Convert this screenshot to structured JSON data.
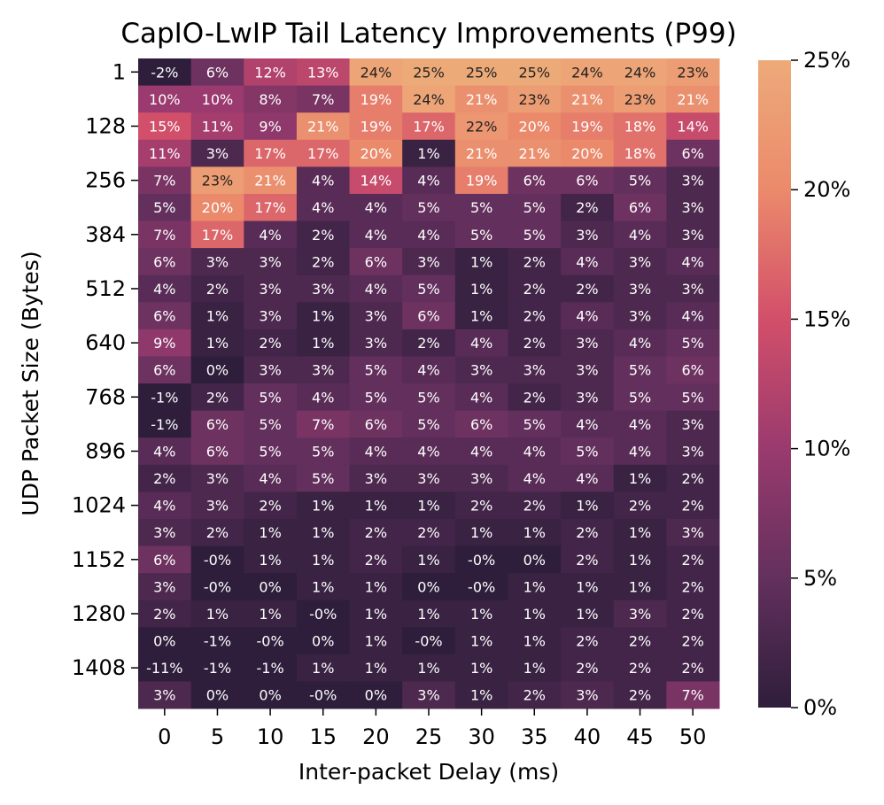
{
  "chart_data": {
    "type": "heatmap",
    "title": "CapIO-LwIP Tail Latency Improvements (P99)",
    "xlabel": "Inter-packet Delay (ms)",
    "ylabel": "UDP Packet Size (Bytes)",
    "x": [
      "0",
      "5",
      "10",
      "15",
      "20",
      "25",
      "30",
      "35",
      "40",
      "45",
      "50"
    ],
    "y_tick_labels": [
      "1",
      "128",
      "256",
      "384",
      "512",
      "640",
      "768",
      "896",
      "1024",
      "1152",
      "1280",
      "1408"
    ],
    "values": [
      [
        -2,
        6,
        12,
        13,
        24,
        25,
        25,
        25,
        24,
        24,
        23
      ],
      [
        10,
        10,
        8,
        7,
        19,
        24,
        21,
        23,
        21,
        23,
        21
      ],
      [
        15,
        11,
        9,
        21,
        19,
        17,
        22,
        20,
        19,
        18,
        14
      ],
      [
        11,
        3,
        17,
        17,
        20,
        1,
        21,
        21,
        20,
        18,
        6
      ],
      [
        7,
        23,
        21,
        4,
        14,
        4,
        19,
        6,
        6,
        5,
        3
      ],
      [
        5,
        20,
        17,
        4,
        4,
        5,
        5,
        5,
        2,
        6,
        3
      ],
      [
        7,
        17,
        4,
        2,
        4,
        4,
        5,
        5,
        3,
        4,
        3
      ],
      [
        6,
        3,
        3,
        2,
        6,
        3,
        1,
        2,
        4,
        3,
        4
      ],
      [
        4,
        2,
        3,
        3,
        4,
        5,
        1,
        2,
        2,
        3,
        3
      ],
      [
        6,
        1,
        3,
        1,
        3,
        6,
        1,
        2,
        4,
        3,
        4
      ],
      [
        9,
        1,
        2,
        1,
        3,
        2,
        4,
        2,
        3,
        4,
        5
      ],
      [
        6,
        0,
        3,
        3,
        5,
        4,
        3,
        3,
        3,
        5,
        6
      ],
      [
        -1,
        2,
        5,
        4,
        5,
        5,
        4,
        2,
        3,
        5,
        5
      ],
      [
        -1,
        6,
        5,
        7,
        6,
        5,
        6,
        5,
        4,
        4,
        3
      ],
      [
        4,
        6,
        5,
        5,
        4,
        4,
        4,
        4,
        5,
        4,
        3
      ],
      [
        2,
        3,
        4,
        5,
        3,
        3,
        3,
        4,
        4,
        1,
        2
      ],
      [
        4,
        3,
        2,
        1,
        1,
        1,
        2,
        2,
        1,
        2,
        2
      ],
      [
        3,
        2,
        1,
        1,
        2,
        2,
        1,
        1,
        2,
        1,
        3
      ],
      [
        6,
        "-0",
        1,
        1,
        2,
        1,
        "-0",
        0,
        2,
        1,
        2
      ],
      [
        3,
        "-0",
        0,
        1,
        1,
        0,
        "-0",
        1,
        1,
        1,
        2
      ],
      [
        2,
        1,
        1,
        "-0",
        1,
        1,
        1,
        1,
        1,
        3,
        2
      ],
      [
        0,
        -1,
        "-0",
        0,
        1,
        "-0",
        1,
        1,
        2,
        2,
        2
      ],
      [
        -11,
        -1,
        -1,
        1,
        1,
        1,
        1,
        1,
        2,
        2,
        2
      ],
      [
        3,
        0,
        0,
        "-0",
        0,
        3,
        1,
        2,
        3,
        2,
        7
      ]
    ],
    "value_suffix": "%",
    "colorbar": {
      "range": [
        0,
        25
      ],
      "ticks": [
        "0%",
        "5%",
        "10%",
        "15%",
        "20%",
        "25%"
      ],
      "colors": [
        "#2e1e3b",
        "#63305d",
        "#9a3a6e",
        "#d24f6a",
        "#eb8a6b",
        "#edaa79"
      ]
    }
  }
}
